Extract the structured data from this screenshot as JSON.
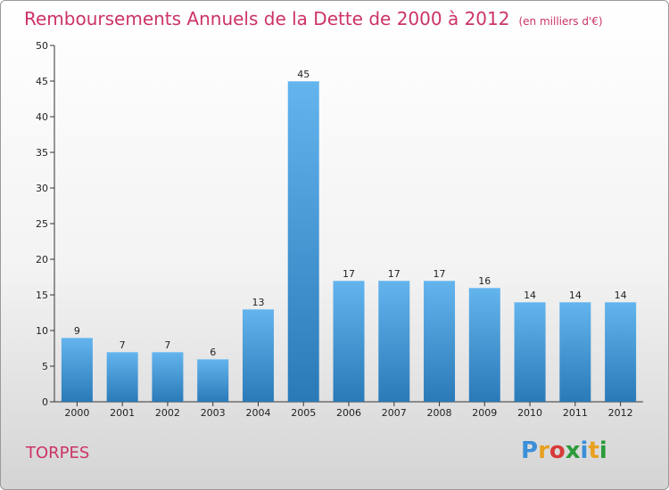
{
  "header": {
    "title": "Remboursements Annuels de la Dette de 2000 à 2012",
    "unit": "(en milliers d'€)"
  },
  "footer": {
    "town": "TORPES",
    "logo_letters": [
      "P",
      "r",
      "o",
      "x",
      "i",
      "t",
      "i"
    ],
    "logo_colors": [
      "#3a8fd8",
      "#e8a020",
      "#d83a3a",
      "#2a9a3a",
      "#3a8fd8",
      "#e8a020",
      "#2a9a3a"
    ]
  },
  "colors": {
    "title": "#cc3366",
    "bar_light": "#64b4ee",
    "bar_dark": "#2a7ab8",
    "axis": "#333333"
  },
  "chart_data": {
    "type": "bar",
    "categories": [
      "2000",
      "2001",
      "2002",
      "2003",
      "2004",
      "2005",
      "2006",
      "2007",
      "2008",
      "2009",
      "2010",
      "2011",
      "2012"
    ],
    "values": [
      9,
      7,
      7,
      6,
      13,
      45,
      17,
      17,
      17,
      16,
      14,
      14,
      14
    ],
    "title": "Remboursements Annuels de la Dette de 2000 à 2012",
    "xlabel": "",
    "ylabel": "",
    "ylim": [
      0,
      50
    ],
    "yticks": [
      0,
      5,
      10,
      15,
      20,
      25,
      30,
      35,
      40,
      45,
      50
    ],
    "grid": false,
    "data_labels": true
  }
}
